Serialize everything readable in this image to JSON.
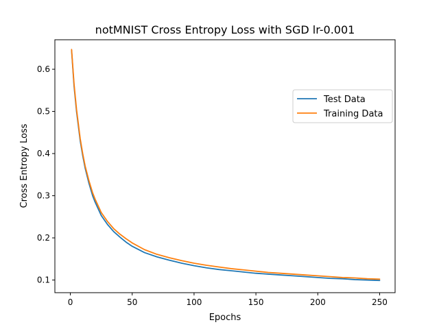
{
  "chart_data": {
    "type": "line",
    "title": "notMNIST Cross Entropy Loss with SGD lr-0.001",
    "xlabel": "Epochs",
    "ylabel": "Cross Entropy Loss",
    "xlim": [
      -12.5,
      262.5
    ],
    "ylim": [
      0.07,
      0.67
    ],
    "xticks": [
      0,
      50,
      100,
      150,
      200,
      250
    ],
    "yticks": [
      0.1,
      0.2,
      0.3,
      0.4,
      0.5,
      0.6
    ],
    "xtick_labels": [
      "0",
      "50",
      "100",
      "150",
      "200",
      "250"
    ],
    "ytick_labels": [
      "0.1",
      "0.2",
      "0.3",
      "0.4",
      "0.5",
      "0.6"
    ],
    "grid": false,
    "legend_position": "upper-right",
    "x": [
      1,
      3,
      5,
      8,
      10,
      12,
      15,
      18,
      20,
      25,
      30,
      35,
      40,
      45,
      50,
      60,
      70,
      80,
      90,
      100,
      110,
      120,
      130,
      140,
      150,
      160,
      170,
      180,
      190,
      200,
      210,
      220,
      230,
      240,
      250
    ],
    "series": [
      {
        "name": "Test Data",
        "color": "#1f77b4",
        "values": [
          0.645,
          0.56,
          0.5,
          0.43,
          0.395,
          0.365,
          0.33,
          0.3,
          0.285,
          0.253,
          0.232,
          0.215,
          0.202,
          0.19,
          0.18,
          0.165,
          0.155,
          0.147,
          0.14,
          0.134,
          0.129,
          0.125,
          0.122,
          0.119,
          0.116,
          0.114,
          0.112,
          0.11,
          0.108,
          0.106,
          0.104,
          0.103,
          0.101,
          0.1,
          0.099
        ]
      },
      {
        "name": "Training Data",
        "color": "#ff7f0e",
        "values": [
          0.647,
          0.565,
          0.505,
          0.435,
          0.4,
          0.37,
          0.336,
          0.307,
          0.292,
          0.26,
          0.239,
          0.222,
          0.209,
          0.198,
          0.188,
          0.172,
          0.161,
          0.153,
          0.146,
          0.14,
          0.135,
          0.131,
          0.127,
          0.124,
          0.121,
          0.118,
          0.116,
          0.114,
          0.112,
          0.11,
          0.108,
          0.106,
          0.105,
          0.103,
          0.102
        ]
      }
    ]
  }
}
